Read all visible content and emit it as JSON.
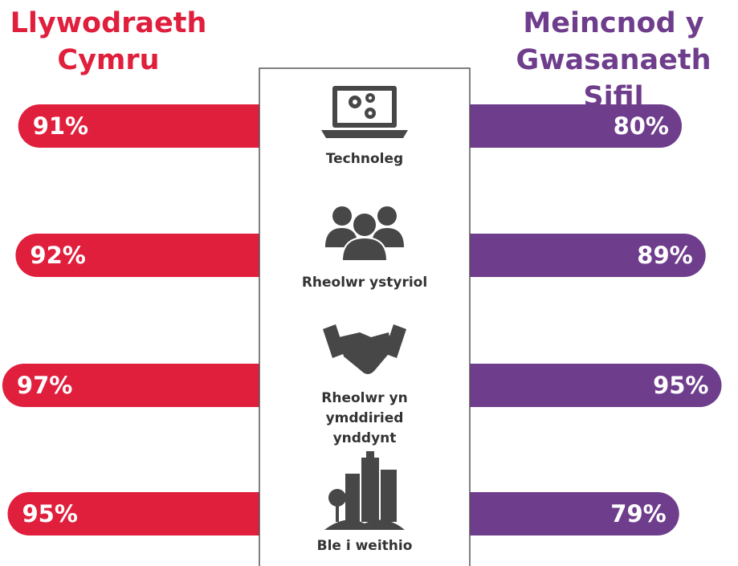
{
  "chart_data": {
    "type": "bar",
    "categories": [
      "Technoleg",
      "Rheolwr ystyriol",
      "Rheolwr yn ymddiried ynddynt",
      "Ble i weithio"
    ],
    "series": [
      {
        "name": "Llywodraeth Cymru",
        "color": "#e01f3d",
        "values": [
          91,
          92,
          97,
          95
        ],
        "value_labels": [
          "91%",
          "92%",
          "97%",
          "95%"
        ]
      },
      {
        "name": "Meincnod y Gwasanaeth Sifil",
        "color": "#6e3d8c",
        "values": [
          80,
          89,
          95,
          79
        ],
        "value_labels": [
          "80%",
          "89%",
          "95%",
          "79%"
        ]
      }
    ],
    "xlim": [
      0,
      100
    ]
  }
}
